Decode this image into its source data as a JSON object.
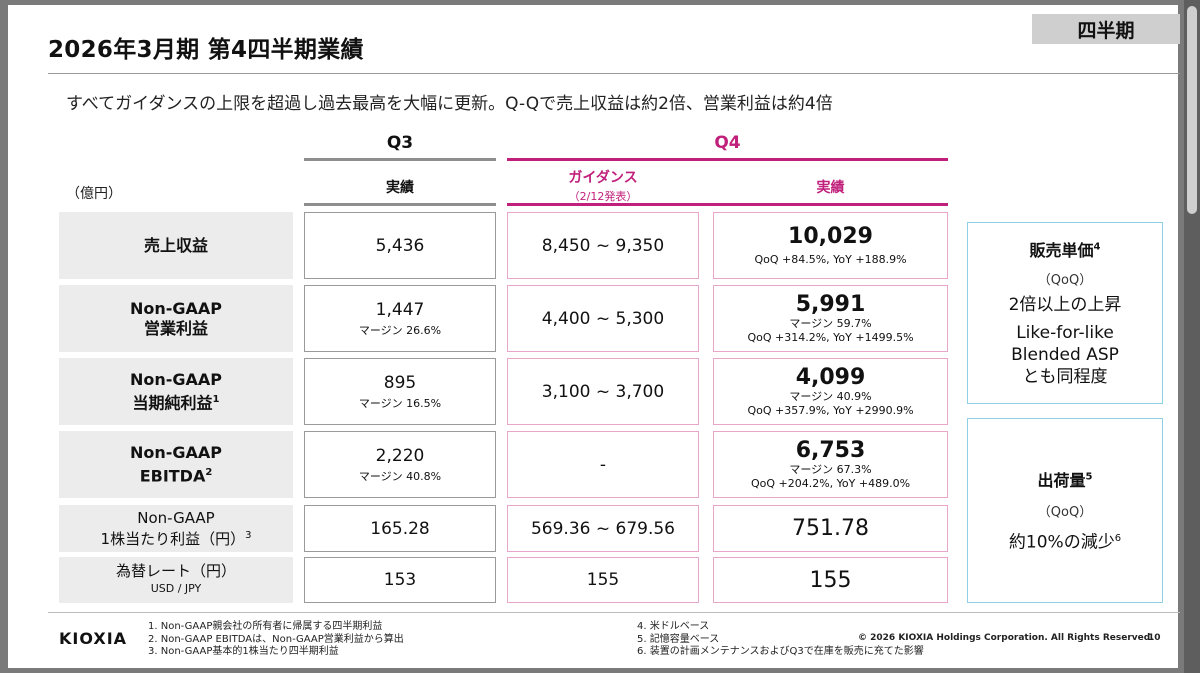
{
  "tag": "四半期",
  "title": "2026年3月期 第4四半期業績",
  "subtitle": "すべてガイダンスの上限を超過し過去最高を大幅に更新。Q-Qで売上収益は約2倍、営業利益は約4倍",
  "unit": "（億円）",
  "headers": {
    "q3": "Q3",
    "q4": "Q4",
    "q3_actual": "実績",
    "guidance": "ガイダンス",
    "guidance_note": "（2/12発表）",
    "q4_actual": "実績"
  },
  "rows": [
    {
      "label1": "売上収益",
      "label2": "",
      "sup": "",
      "q3": "5,436",
      "q3_margin": "",
      "guidance": "8,450 ~ 9,350",
      "actual": "10,029",
      "actual_margin": "",
      "qoq": "QoQ +84.5%, YoY +188.9%"
    },
    {
      "label1": "Non-GAAP",
      "label2": "営業利益",
      "sup": "",
      "q3": "1,447",
      "q3_margin": "マージン 26.6%",
      "guidance": "4,400 ~ 5,300",
      "actual": "5,991",
      "actual_margin": "マージン 59.7%",
      "qoq": "QoQ +314.2%, YoY +1499.5%"
    },
    {
      "label1": "Non-GAAP",
      "label2": "当期純利益",
      "sup": "1",
      "q3": "895",
      "q3_margin": "マージン 16.5%",
      "guidance": "3,100 ~ 3,700",
      "actual": "4,099",
      "actual_margin": "マージン 40.9%",
      "qoq": "QoQ +357.9%, YoY +2990.9%"
    },
    {
      "label1": "Non-GAAP",
      "label2": "EBITDA",
      "sup": "2",
      "q3": "2,220",
      "q3_margin": "マージン 40.8%",
      "guidance": "-",
      "actual": "6,753",
      "actual_margin": "マージン 67.3%",
      "qoq": "QoQ +204.2%, YoY +489.0%"
    },
    {
      "label1": "Non-GAAP",
      "label2": "1株当たり利益（円）",
      "sup": "3",
      "q3": "165.28",
      "guidance": "569.36 ~ 679.56",
      "actual": "751.78"
    },
    {
      "label1": "為替レート（円）",
      "label2": "USD / JPY",
      "q3": "153",
      "guidance": "155",
      "actual": "155"
    }
  ],
  "side": {
    "asp_title": "販売単価",
    "asp_sup": "4",
    "asp_qoq": "（QoQ）",
    "asp_line1": "2倍以上の上昇",
    "asp_line2": "Like-for-like",
    "asp_line3": "Blended ASP",
    "asp_line4": "とも同程度",
    "ship_title": "出荷量",
    "ship_sup": "5",
    "ship_qoq": "（QoQ）",
    "ship_line1": "約10%の減少",
    "ship_line1_sup": "6"
  },
  "footer": {
    "logo": "KIOXIA",
    "notes_left": [
      "1. Non-GAAP親会社の所有者に帰属する四半期利益",
      "2. Non-GAAP EBITDAは、Non-GAAP営業利益から算出",
      "3. Non-GAAP基本的1株当たり四半期利益"
    ],
    "notes_right": [
      "4. 米ドルベース",
      "5. 記憶容量ベース",
      "6. 装置の計画メンテナンスおよびQ3で在庫を販売に充てた影響"
    ],
    "copyright": "© 2026 KIOXIA Holdings Corporation. All Rights Reserved.",
    "page": "10"
  }
}
